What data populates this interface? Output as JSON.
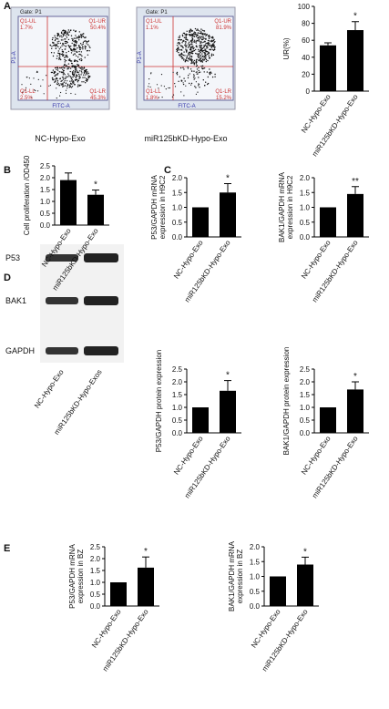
{
  "panels": [
    "A",
    "B",
    "C",
    "D",
    "E"
  ],
  "flow": [
    {
      "gate": "Gate: P1",
      "xlabel": "FITC-A",
      "ylabel": "P1-A",
      "caption": "NC-Hypo-Exo",
      "quadrants": [
        {
          "name": "Q1-UL",
          "pct": "1.7%"
        },
        {
          "name": "Q1-UR",
          "pct": "50.4%"
        },
        {
          "name": "Q1-LL",
          "pct": "2.5%"
        },
        {
          "name": "Q1-LR",
          "pct": "45.3%"
        }
      ]
    },
    {
      "gate": "Gate: P1",
      "xlabel": "FITC-A",
      "ylabel": "P1-A",
      "caption": "miR125bKD-Hypo-Exo",
      "quadrants": [
        {
          "name": "Q1-UL",
          "pct": "1.1%"
        },
        {
          "name": "Q1-UR",
          "pct": "81.9%"
        },
        {
          "name": "Q1-LL",
          "pct": "1.8%"
        },
        {
          "name": "Q1-LR",
          "pct": "15.2%"
        }
      ]
    }
  ],
  "blot": {
    "bands": [
      "P53",
      "BAK1",
      "GAPDH"
    ],
    "categories": [
      "NC-Hypo-Exo",
      "miR125bKD-Hypo-Exos"
    ]
  },
  "chart_data": [
    {
      "type": "bar",
      "ylabel": [
        "UR(%)"
      ],
      "categories": [
        "NC-Hypo-Exo",
        "miR125bKD-Hypo-Exo"
      ],
      "values": [
        54,
        72
      ],
      "errors": [
        3,
        10
      ],
      "annotation": "*",
      "ylim": [
        0,
        100
      ],
      "yticks": [
        0,
        20,
        40,
        60,
        80,
        100
      ]
    },
    {
      "type": "bar",
      "ylabel": [
        "Cell proliferation /OD450"
      ],
      "categories": [
        "NC-Hypo-Exo",
        "miR125bKD-Hypo-Exo"
      ],
      "values": [
        1.9,
        1.28
      ],
      "errors": [
        0.3,
        0.2
      ],
      "annotation": "*",
      "ylim": [
        0,
        2.5
      ],
      "yticks": [
        {
          "value": 0,
          "label": "0.0"
        },
        {
          "value": 0.5,
          "label": "0.5"
        },
        {
          "value": 1,
          "label": "1.0"
        },
        {
          "value": 1.5,
          "label": "1.5"
        },
        {
          "value": 2,
          "label": "2.0"
        },
        {
          "value": 2.5,
          "label": "2.5"
        }
      ]
    },
    {
      "type": "bar",
      "ylabel": [
        "P53/GAPDH mRNA",
        "expression in H9C2"
      ],
      "categories": [
        "NC-Hypo-Exo",
        "miR125bKD-Hypo-Exo"
      ],
      "values": [
        1.0,
        1.5
      ],
      "errors": [
        0,
        0.3
      ],
      "annotation": "*",
      "ylim": [
        0,
        2
      ],
      "yticks": [
        {
          "value": 0,
          "label": "0.0"
        },
        {
          "value": 0.5,
          "label": "0.5"
        },
        {
          "value": 1,
          "label": "1.0"
        },
        {
          "value": 1.5,
          "label": "1.5"
        },
        {
          "value": 2,
          "label": "2.0"
        }
      ]
    },
    {
      "type": "bar",
      "ylabel": [
        "BAK1/GAPDH mRNA",
        "expression in H9C2"
      ],
      "categories": [
        "NC-Hypo-Exo",
        "miR125bKD-Hypo-Exo"
      ],
      "values": [
        1.0,
        1.45
      ],
      "errors": [
        0,
        0.25
      ],
      "annotation": "**",
      "ylim": [
        0,
        2
      ],
      "yticks": [
        {
          "value": 0,
          "label": "0.0"
        },
        {
          "value": 0.5,
          "label": "0.5"
        },
        {
          "value": 1,
          "label": "1.0"
        },
        {
          "value": 1.5,
          "label": "1.5"
        },
        {
          "value": 2,
          "label": "2.0"
        }
      ]
    },
    {
      "type": "bar",
      "ylabel": [
        "P53/GAPDH protein expression"
      ],
      "categories": [
        "NC-Hypo-Exo",
        "miR125bKD-Hypo-Exo"
      ],
      "values": [
        1.0,
        1.65
      ],
      "errors": [
        0,
        0.4
      ],
      "annotation": "*",
      "ylim": [
        0,
        2.5
      ],
      "yticks": [
        {
          "value": 0,
          "label": "0.0"
        },
        {
          "value": 0.5,
          "label": "0.5"
        },
        {
          "value": 1,
          "label": "1.0"
        },
        {
          "value": 1.5,
          "label": "1.5"
        },
        {
          "value": 2,
          "label": "2.0"
        },
        {
          "value": 2.5,
          "label": "2.5"
        }
      ]
    },
    {
      "type": "bar",
      "ylabel": [
        "BAK1/GAPDH protein expression"
      ],
      "categories": [
        "NC-Hypo-Exo",
        "miR125bKD-Hypo-Exo"
      ],
      "values": [
        1.0,
        1.7
      ],
      "errors": [
        0,
        0.3
      ],
      "annotation": "*",
      "ylim": [
        0,
        2.5
      ],
      "yticks": [
        {
          "value": 0,
          "label": "0.0"
        },
        {
          "value": 0.5,
          "label": "0.5"
        },
        {
          "value": 1,
          "label": "1.0"
        },
        {
          "value": 1.5,
          "label": "1.5"
        },
        {
          "value": 2,
          "label": "2.0"
        },
        {
          "value": 2.5,
          "label": "2.5"
        }
      ]
    },
    {
      "type": "bar",
      "ylabel": [
        "P53/GAPDH mRNA",
        "expression in BZ"
      ],
      "categories": [
        "NC-Hypo-Exo",
        "miR125bKD-Hypo-Exo"
      ],
      "values": [
        1.0,
        1.62
      ],
      "errors": [
        0,
        0.45
      ],
      "annotation": "*",
      "ylim": [
        0,
        2.5
      ],
      "yticks": [
        {
          "value": 0,
          "label": "0.0"
        },
        {
          "value": 0.5,
          "label": "0.5"
        },
        {
          "value": 1,
          "label": "1.0"
        },
        {
          "value": 1.5,
          "label": "1.5"
        },
        {
          "value": 2,
          "label": "2.0"
        },
        {
          "value": 2.5,
          "label": "2.5"
        }
      ]
    },
    {
      "type": "bar",
      "ylabel": [
        "BAK1/GAPDH mRNA",
        "expression in BZ"
      ],
      "categories": [
        "NC-Hypo-Exo",
        "miR125bKD-Hypo-Exo"
      ],
      "values": [
        1.0,
        1.4
      ],
      "errors": [
        0,
        0.25
      ],
      "annotation": "*",
      "ylim": [
        0,
        2
      ],
      "yticks": [
        {
          "value": 0,
          "label": "0.0"
        },
        {
          "value": 0.5,
          "label": "0.5"
        },
        {
          "value": 1,
          "label": "1.0"
        },
        {
          "value": 1.5,
          "label": "1.5"
        },
        {
          "value": 2,
          "label": "2.0"
        }
      ]
    }
  ]
}
